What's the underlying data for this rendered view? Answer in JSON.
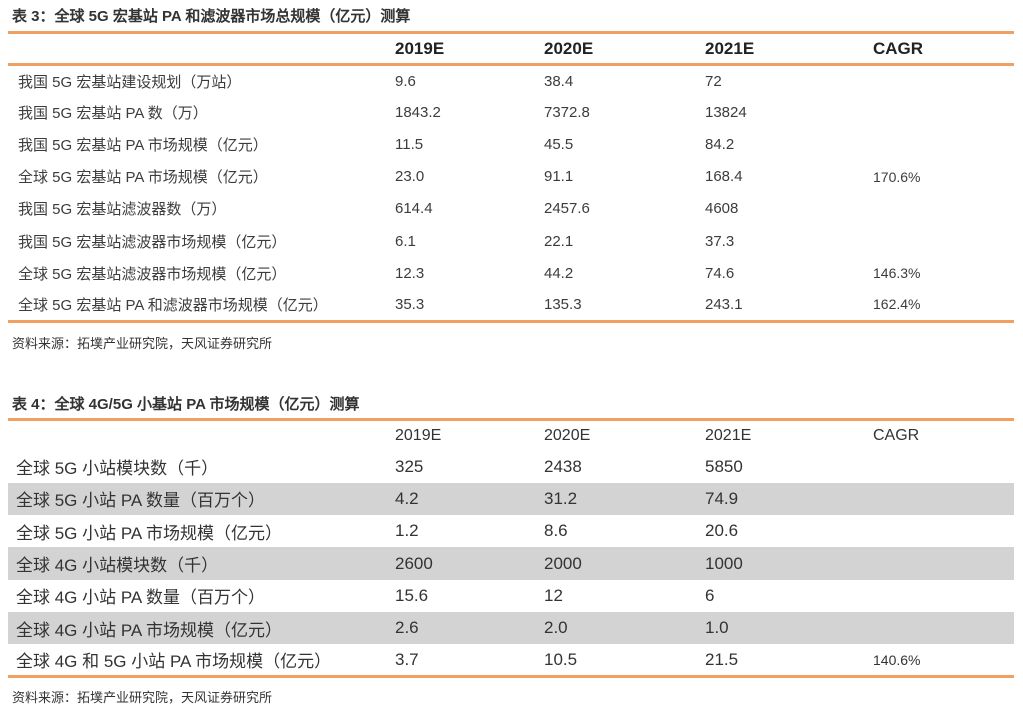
{
  "table3": {
    "caption": "表 3：全球 5G 宏基站 PA 和滤波器市场总规模（亿元）测算",
    "headers": [
      "",
      "2019E",
      "2020E",
      "2021E",
      "CAGR"
    ],
    "rows": [
      [
        "我国 5G 宏基站建设规划（万站）",
        "9.6",
        "38.4",
        "72",
        ""
      ],
      [
        "我国 5G 宏基站 PA 数（万）",
        "1843.2",
        "7372.8",
        "13824",
        ""
      ],
      [
        "我国 5G 宏基站 PA 市场规模（亿元）",
        "11.5",
        "45.5",
        "84.2",
        ""
      ],
      [
        "全球 5G 宏基站 PA 市场规模（亿元）",
        "23.0",
        "91.1",
        "168.4",
        "170.6%"
      ],
      [
        "我国 5G 宏基站滤波器数（万）",
        "614.4",
        "2457.6",
        "4608",
        ""
      ],
      [
        "我国 5G 宏基站滤波器市场规模（亿元）",
        "6.1",
        "22.1",
        "37.3",
        ""
      ],
      [
        "全球 5G 宏基站滤波器市场规模（亿元）",
        "12.3",
        "44.2",
        "74.6",
        "146.3%"
      ],
      [
        "全球 5G 宏基站 PA 和滤波器市场规模（亿元）",
        "35.3",
        "135.3",
        "243.1",
        "162.4%"
      ]
    ],
    "source": "资料来源：拓墣产业研究院，天风证券研究所"
  },
  "table4": {
    "caption": "表 4：全球 4G/5G 小基站 PA 市场规模（亿元）测算",
    "headers": [
      "",
      "2019E",
      "2020E",
      "2021E",
      "CAGR"
    ],
    "rows": [
      [
        "全球 5G 小站模块数（千）",
        "325",
        "2438",
        "5850",
        ""
      ],
      [
        "全球 5G 小站 PA 数量（百万个）",
        "4.2",
        "31.2",
        "74.9",
        ""
      ],
      [
        "全球 5G 小站 PA 市场规模（亿元）",
        "1.2",
        "8.6",
        "20.6",
        ""
      ],
      [
        "全球 4G 小站模块数（千）",
        "2600",
        "2000",
        "1000",
        ""
      ],
      [
        "全球 4G 小站 PA 数量（百万个）",
        "15.6",
        "12",
        "6",
        ""
      ],
      [
        "全球 4G 小站 PA 市场规模（亿元）",
        "2.6",
        "2.0",
        "1.0",
        ""
      ],
      [
        "全球 4G 和 5G 小站 PA 市场规模（亿元）",
        "3.7",
        "10.5",
        "21.5",
        "140.6%"
      ]
    ],
    "shaded_rows": [
      1,
      3,
      5
    ],
    "source": "资料来源：拓墣产业研究院，天风证券研究所"
  },
  "colors": {
    "rule": "#f0a060",
    "shade": "#d3d3d3"
  }
}
